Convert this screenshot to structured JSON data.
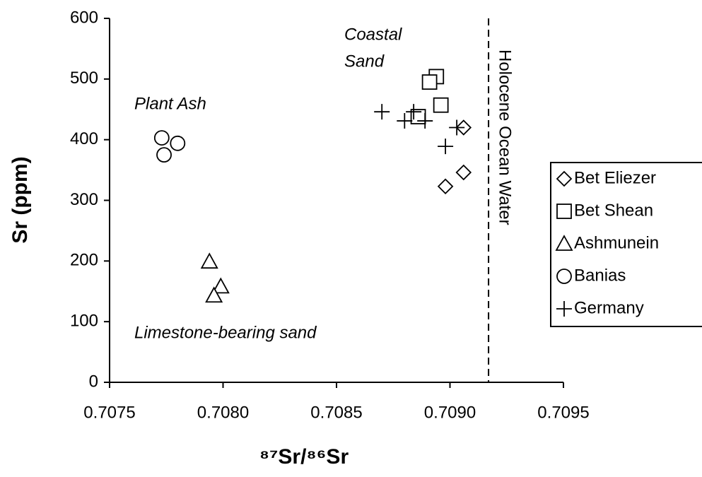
{
  "chart_data": {
    "type": "scatter",
    "x_label": "⁸⁷Sr/⁸⁶Sr",
    "y_label": "Sr (ppm)",
    "xlim": [
      0.7075,
      0.7095
    ],
    "xticks": [
      0.7075,
      {
        "value": 0.708,
        "label": "0.7080"
      },
      0.7085,
      {
        "value": 0.709,
        "label": "0.7090"
      },
      0.7095
    ],
    "ylim": [
      0,
      600
    ],
    "yticks": [
      0,
      100,
      200,
      300,
      400,
      500,
      600
    ],
    "grid": false,
    "legend": "right",
    "reference_line": {
      "x": 0.70917,
      "label": "Holocene Ocean Water"
    },
    "annotations": [
      "Coastal",
      "Sand",
      "Plant Ash",
      "Limestone-bearing sand"
    ],
    "series": [
      {
        "name": "Bet Eliezer",
        "marker": "diamond",
        "color": "#000000",
        "x": [
          0.70906,
          0.70906,
          0.70898
        ],
        "values": [
          420,
          346,
          323
        ]
      },
      {
        "name": "Bet Shean",
        "marker": "square",
        "color": "#000000",
        "x": [
          0.70894,
          0.70891,
          0.70896,
          0.70886
        ],
        "values": [
          504,
          495,
          457,
          438
        ]
      },
      {
        "name": "Ashmunein",
        "marker": "triangle",
        "color": "#000000",
        "x": [
          0.70794,
          0.70799,
          0.70796
        ],
        "values": [
          199,
          158,
          143
        ]
      },
      {
        "name": "Banias",
        "marker": "circle",
        "color": "#000000",
        "x": [
          0.70773,
          0.7078,
          0.70774
        ],
        "values": [
          403,
          394,
          375
        ]
      },
      {
        "name": "Germany",
        "marker": "plus",
        "color": "#000000",
        "x": [
          0.7087,
          0.7088,
          0.70884,
          0.70889,
          0.70898,
          0.70903
        ],
        "values": [
          446,
          431,
          446,
          431,
          389,
          420
        ]
      }
    ]
  }
}
